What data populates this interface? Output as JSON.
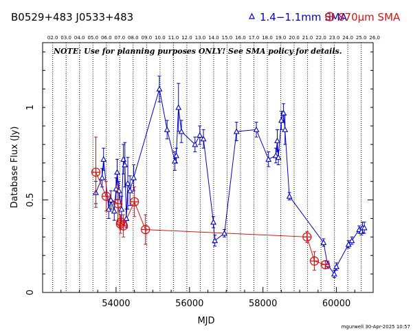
{
  "header": {
    "source_names": "B0529+483    J0533+483",
    "legend_blue": "1.4−1.1mm SMA",
    "legend_red": "870μm SMA",
    "note": "NOTE: Use for planning purposes ONLY!  See SMA policy for details.",
    "footer": "mgurwell 30-Apr-2025 10:57"
  },
  "colors": {
    "blue": "#0000cc",
    "red": "#dd1111",
    "axis": "#000000"
  },
  "chart_data": {
    "type": "scatter",
    "xlabel": "MJD",
    "ylabel": "Database Flux (Jy)",
    "xlim": [
      52000,
      61000
    ],
    "ylim": [
      0,
      1.35
    ],
    "x_ticks": [
      54000,
      56000,
      58000,
      60000
    ],
    "x_tick_labels": [
      "54000",
      "56000",
      "58000",
      "60000"
    ],
    "y_ticks": [
      0,
      0.5,
      1
    ],
    "y_tick_labels": [
      "0",
      "0.5",
      "1"
    ],
    "top_year_labels": [
      "02.0",
      "03.0",
      "04.0",
      "05.0",
      "06.0",
      "07.0",
      "08.0",
      "09.0",
      "10.0",
      "11.0",
      "12.0",
      "13.0",
      "14.0",
      "15.0",
      "16.0",
      "17.0",
      "18.0",
      "19.0",
      "20.0",
      "21.0",
      "22.0",
      "23.0",
      "24.0",
      "25.0",
      "26.0"
    ],
    "top_year_mjd": [
      52275,
      52640,
      53005,
      53371,
      53736,
      54101,
      54466,
      54832,
      55197,
      55562,
      55927,
      56293,
      56658,
      57023,
      57388,
      57754,
      58119,
      58484,
      58849,
      59215,
      59580,
      59945,
      60310,
      60676,
      61041
    ],
    "series": [
      {
        "name": "1.4−1.1mm SMA",
        "marker": "triangle",
        "x": [
          53450,
          53620,
          53660,
          53800,
          53860,
          53950,
          54000,
          54030,
          54080,
          54150,
          54200,
          54240,
          54280,
          54320,
          54380,
          54480,
          55180,
          55390,
          55600,
          55640,
          55700,
          55780,
          56150,
          56280,
          56380,
          56650,
          56690,
          56950,
          57280,
          57820,
          58150,
          58350,
          58390,
          58420,
          58500,
          58560,
          58600,
          58720,
          59650,
          59760,
          59940,
          60000,
          60330,
          60420,
          60620,
          60680,
          60710,
          60760
        ],
        "y": [
          0.54,
          0.62,
          0.72,
          0.45,
          0.5,
          0.44,
          0.56,
          0.65,
          0.55,
          0.45,
          0.72,
          0.69,
          0.4,
          0.59,
          0.55,
          0.62,
          1.1,
          0.88,
          0.71,
          0.74,
          1.0,
          0.87,
          0.8,
          0.85,
          0.83,
          0.38,
          0.28,
          0.32,
          0.87,
          0.88,
          0.72,
          0.74,
          0.82,
          0.73,
          0.93,
          0.97,
          0.88,
          0.52,
          0.27,
          0.15,
          0.1,
          0.14,
          0.26,
          0.28,
          0.34,
          0.33,
          0.35,
          0.35
        ],
        "err": [
          0.06,
          0.05,
          0.06,
          0.05,
          0.05,
          0.05,
          0.06,
          0.07,
          0.05,
          0.07,
          0.08,
          0.12,
          0.05,
          0.14,
          0.08,
          0.07,
          0.07,
          0.05,
          0.05,
          0.04,
          0.13,
          0.06,
          0.04,
          0.05,
          0.05,
          0.03,
          0.03,
          0.02,
          0.05,
          0.04,
          0.04,
          0.04,
          0.06,
          0.04,
          0.05,
          0.05,
          0.08,
          0.02,
          0.02,
          0.02,
          0.02,
          0.02,
          0.02,
          0.02,
          0.02,
          0.02,
          0.03,
          0.03
        ]
      },
      {
        "name": "870μm SMA",
        "marker": "circle-plus",
        "x": [
          53450,
          53730,
          54050,
          54120,
          54130,
          54200,
          54500,
          54800,
          59200,
          59400,
          59700
        ],
        "y": [
          0.65,
          0.52,
          0.48,
          0.37,
          0.38,
          0.36,
          0.49,
          0.34,
          0.3,
          0.17,
          0.15
        ],
        "err": [
          0.19,
          0.08,
          0.1,
          0.05,
          0.04,
          0.06,
          0.08,
          0.08,
          0.03,
          0.05,
          0.02
        ]
      }
    ]
  }
}
